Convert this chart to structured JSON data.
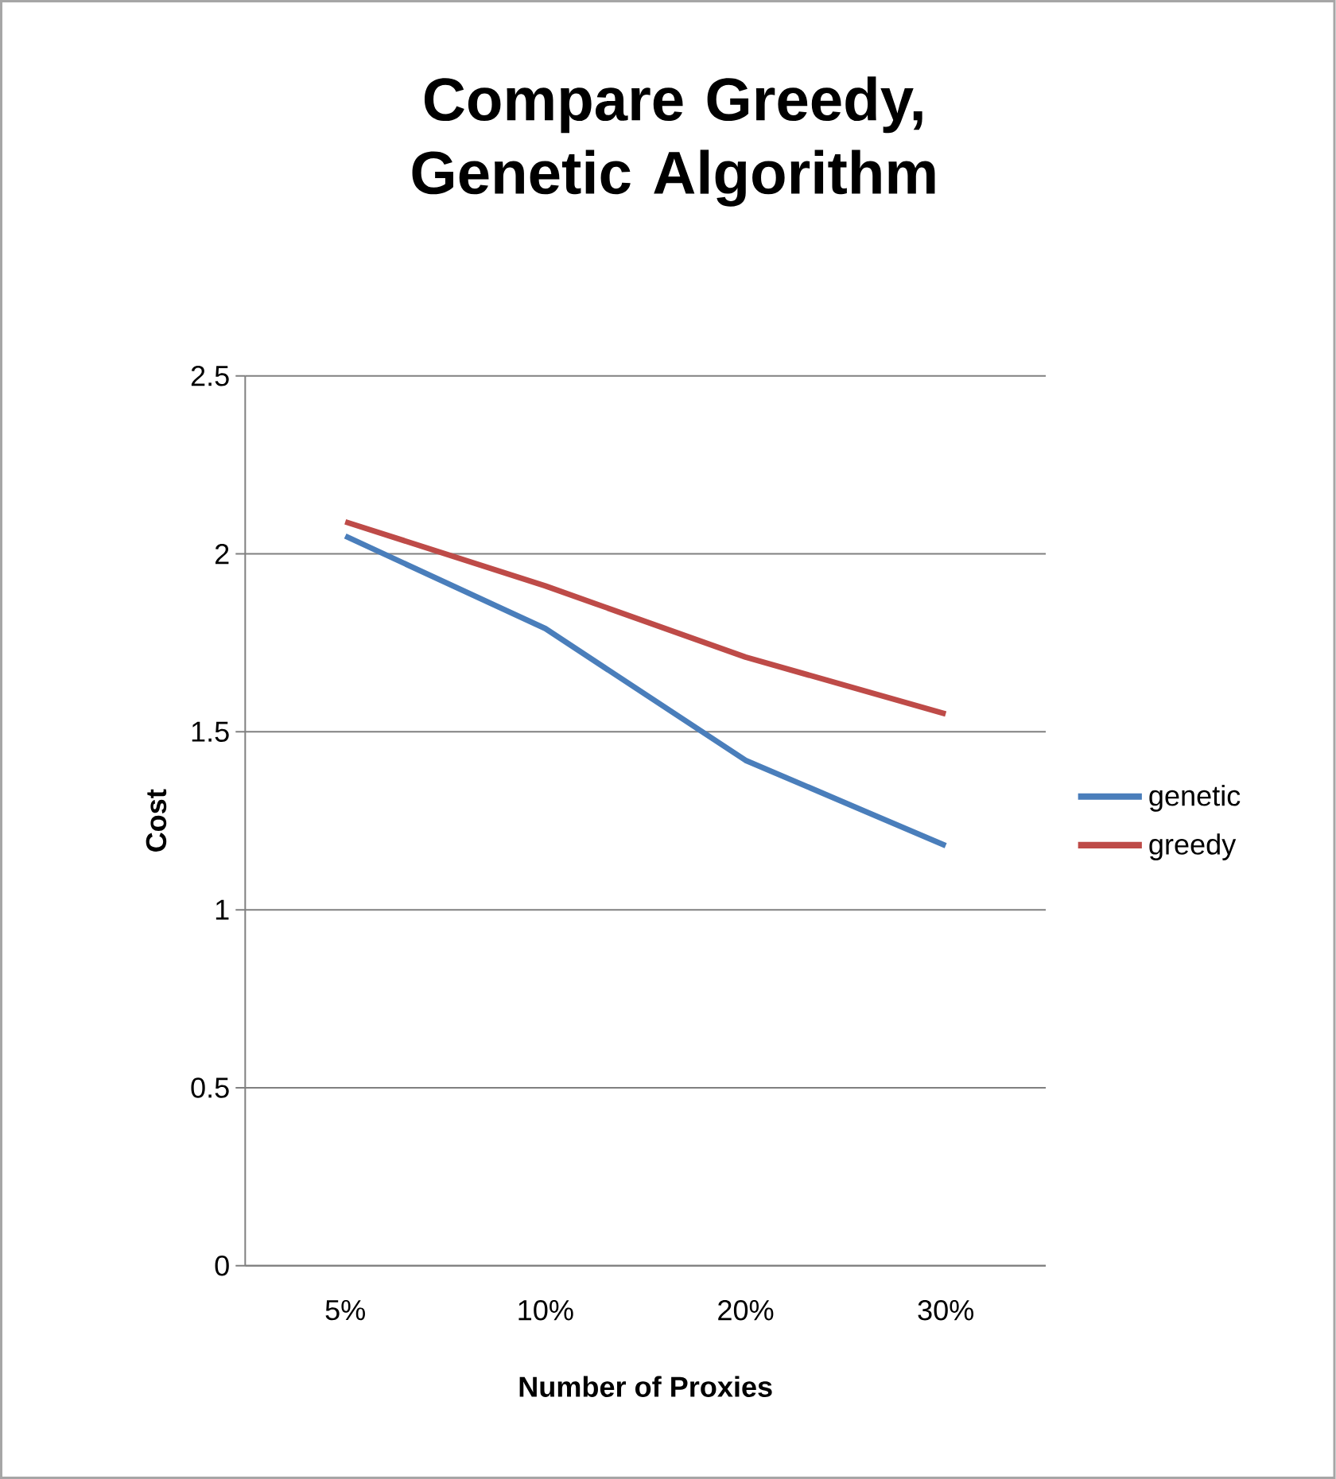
{
  "chart_data": {
    "type": "line",
    "title": "Compare Greedy, Genetic Algorithm",
    "xlabel": "Number of Proxies",
    "ylabel": "Cost",
    "categories": [
      "5%",
      "10%",
      "20%",
      "30%"
    ],
    "series": [
      {
        "name": "genetic",
        "color": "#4a7ebb",
        "values": [
          2.05,
          1.79,
          1.42,
          1.18
        ]
      },
      {
        "name": "greedy",
        "color": "#be4b48",
        "values": [
          2.09,
          1.91,
          1.71,
          1.55
        ]
      }
    ],
    "ylim": [
      0,
      2.5
    ],
    "yticks": [
      0,
      0.5,
      1,
      1.5,
      2,
      2.5
    ],
    "grid": "y",
    "legend": "right",
    "marker": "none",
    "line_style": "solid"
  }
}
